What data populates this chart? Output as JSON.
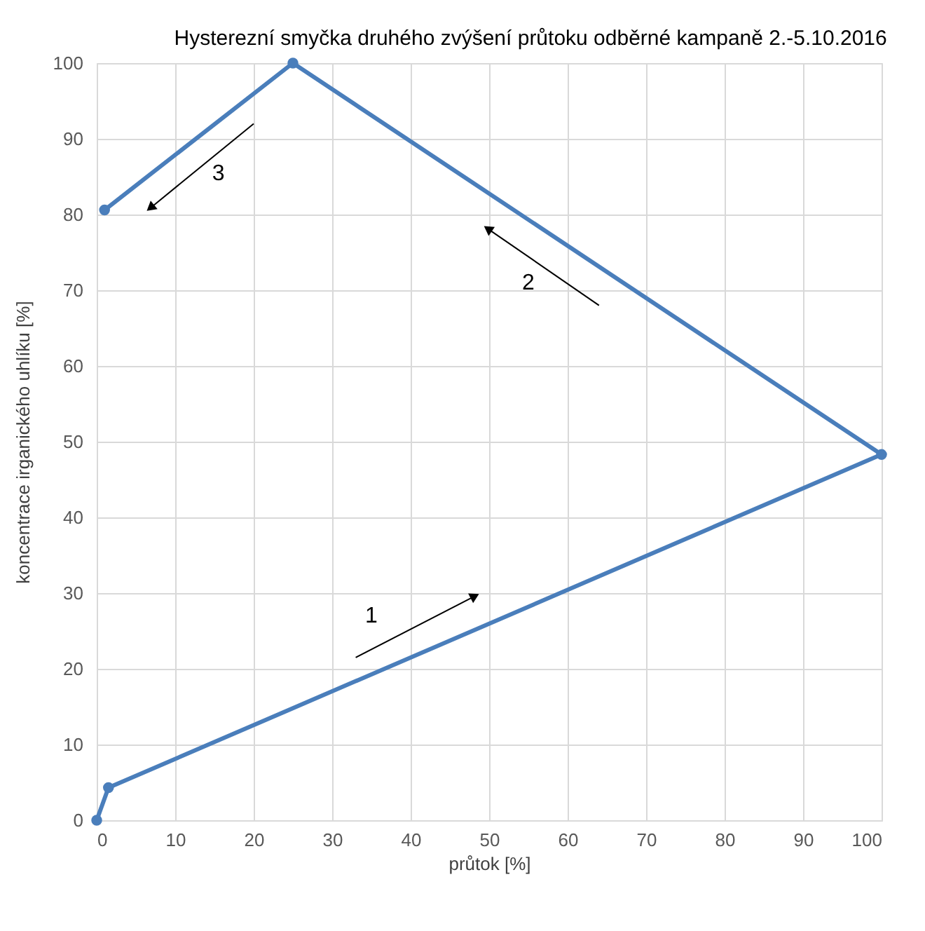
{
  "chart_data": {
    "type": "line",
    "title": "Hysterezní smyčka druhého zvýšení průtoku odběrné kampaně 2.-5.10.2016",
    "xlabel": "průtok [%]",
    "ylabel": "koncentrace irganického uhlíku [%]",
    "x": [
      0,
      1.5,
      100,
      25,
      1
    ],
    "series": [
      {
        "color": "#4a7ebb",
        "values": [
          0,
          4.3,
          48.3,
          100,
          80.6
        ]
      }
    ],
    "xlim": [
      0,
      100
    ],
    "xticks": [
      0,
      10,
      20,
      30,
      40,
      50,
      60,
      70,
      80,
      90,
      100
    ],
    "ylim": [
      0,
      100
    ],
    "yticks": [
      0,
      10,
      20,
      30,
      40,
      50,
      60,
      70,
      80,
      90,
      100
    ],
    "grid": true,
    "marker": "circle",
    "line_style": "solid",
    "annotations": [
      "1",
      "2",
      "3"
    ]
  }
}
